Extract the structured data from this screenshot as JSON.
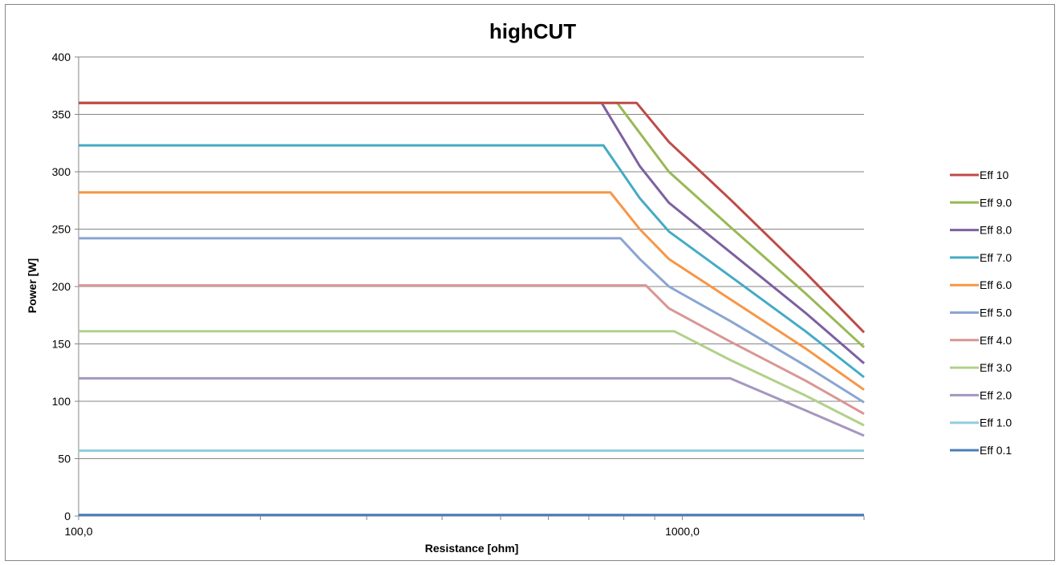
{
  "chart_data": {
    "type": "line",
    "title": "highCUT",
    "xlabel": "Resistance [ohm]",
    "ylabel": "Power [W]",
    "x_scale": "log",
    "xlim": [
      100,
      2000
    ],
    "ylim": [
      0,
      400
    ],
    "y_ticks": [
      0,
      50,
      100,
      150,
      200,
      250,
      300,
      350,
      400
    ],
    "y_tick_labels": [
      "0",
      "50",
      "100",
      "150",
      "200",
      "250",
      "300",
      "350",
      "400"
    ],
    "x_tick_labels": [
      {
        "value": 100,
        "label": "100,0"
      },
      {
        "value": 1000,
        "label": "1000,0"
      }
    ],
    "grid": "horizontal",
    "legend_position": "right",
    "series": [
      {
        "name": "Eff 10",
        "color": "#be4b48",
        "points": [
          [
            100,
            360
          ],
          [
            840,
            360
          ],
          [
            950,
            326
          ],
          [
            1200,
            276
          ],
          [
            1600,
            212
          ],
          [
            2000,
            160
          ]
        ]
      },
      {
        "name": "Eff 9.0",
        "color": "#98b954",
        "points": [
          [
            100,
            360
          ],
          [
            780,
            360
          ],
          [
            950,
            300
          ],
          [
            1200,
            252
          ],
          [
            1600,
            194
          ],
          [
            2000,
            147
          ]
        ]
      },
      {
        "name": "Eff 8.0",
        "color": "#7d60a0",
        "points": [
          [
            100,
            360
          ],
          [
            735,
            360
          ],
          [
            850,
            305
          ],
          [
            950,
            273
          ],
          [
            1200,
            230
          ],
          [
            1600,
            177
          ],
          [
            2000,
            133
          ]
        ]
      },
      {
        "name": "Eff 7.0",
        "color": "#46aac5",
        "points": [
          [
            100,
            323
          ],
          [
            740,
            323
          ],
          [
            850,
            277
          ],
          [
            950,
            248
          ],
          [
            1200,
            209
          ],
          [
            1600,
            161
          ],
          [
            2000,
            121
          ]
        ]
      },
      {
        "name": "Eff 6.0",
        "color": "#f79646",
        "points": [
          [
            100,
            282
          ],
          [
            760,
            282
          ],
          [
            850,
            250
          ],
          [
            950,
            224
          ],
          [
            1200,
            189
          ],
          [
            1600,
            146
          ],
          [
            2000,
            110
          ]
        ]
      },
      {
        "name": "Eff 5.0",
        "color": "#8aa5d2",
        "points": [
          [
            100,
            242
          ],
          [
            790,
            242
          ],
          [
            850,
            224
          ],
          [
            950,
            200
          ],
          [
            1200,
            170
          ],
          [
            1600,
            131
          ],
          [
            2000,
            99
          ]
        ]
      },
      {
        "name": "Eff 4.0",
        "color": "#d99694",
        "points": [
          [
            100,
            201
          ],
          [
            870,
            201
          ],
          [
            950,
            181
          ],
          [
            1200,
            152
          ],
          [
            1600,
            118
          ],
          [
            2000,
            89
          ]
        ]
      },
      {
        "name": "Eff 3.0",
        "color": "#b2d08c",
        "points": [
          [
            100,
            161
          ],
          [
            970,
            161
          ],
          [
            1200,
            136
          ],
          [
            1600,
            105
          ],
          [
            2000,
            79
          ]
        ]
      },
      {
        "name": "Eff 2.0",
        "color": "#a596c0",
        "points": [
          [
            100,
            120
          ],
          [
            1200,
            120
          ],
          [
            1600,
            92
          ],
          [
            2000,
            70
          ]
        ]
      },
      {
        "name": "Eff 1.0",
        "color": "#93cddd",
        "points": [
          [
            100,
            57
          ],
          [
            2000,
            57
          ]
        ]
      },
      {
        "name": "Eff 0.1",
        "color": "#4a7ebb",
        "points": [
          [
            100,
            1
          ],
          [
            2000,
            1
          ]
        ]
      }
    ]
  }
}
